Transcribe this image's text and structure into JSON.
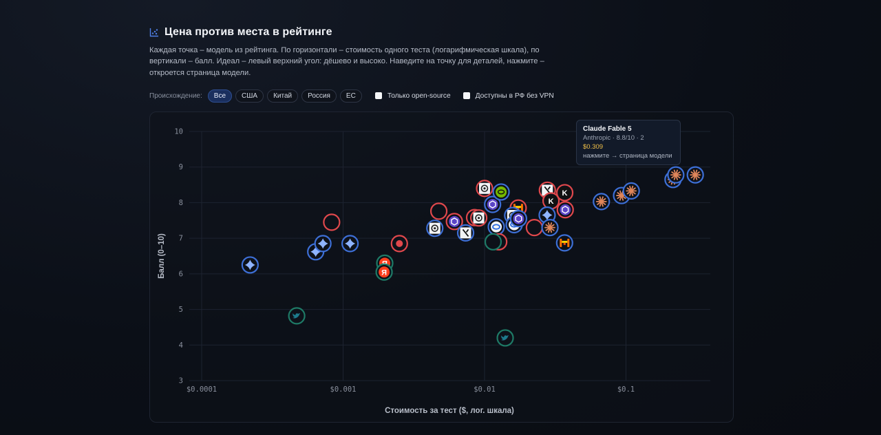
{
  "header": {
    "title": "Цена против места в рейтинге",
    "description": "Каждая точка – модель из рейтинга. По горизонтали – стоимость одного теста (логарифмическая шкала), по вертикали – балл. Идеал – левый верхний угол: дёшево и высоко. Наведите на точку для деталей, нажмите – откроется страница модели.",
    "icon": "scatter-chart-icon"
  },
  "filters": {
    "label": "Происхождение:",
    "chips": [
      "Все",
      "США",
      "Китай",
      "Россия",
      "ЕС"
    ],
    "active": "Все",
    "checkboxes": [
      {
        "label": "Только open-source",
        "checked": false
      },
      {
        "label": "Доступны в РФ без VPN",
        "checked": false
      }
    ]
  },
  "tooltip": {
    "name": "Claude Fable 5",
    "sub": "Anthropic · 8.8/10 · 2",
    "price": "$0.309",
    "hint": "нажмите → страница модели"
  },
  "colors": {
    "ring_red": "#e0484c",
    "ring_blue": "#3d6fd6",
    "ring_teal": "#1e7a66",
    "accent": "#2f4f92",
    "tooltip_price": "#f0c048"
  },
  "chart_data": {
    "type": "scatter",
    "title": "",
    "xlabel": "Стоимость за тест ($, лог. шкала)",
    "ylabel": "Балл (0–10)",
    "xscale": "log",
    "xlim": [
      0.0001,
      0.3
    ],
    "ylim": [
      3,
      10
    ],
    "xticks": [
      0.0001,
      0.001,
      0.01,
      0.1
    ],
    "xtick_labels": [
      "$0.0001",
      "$0.001",
      "$0.01",
      "$0.1"
    ],
    "yticks": [
      3,
      4,
      5,
      6,
      7,
      8,
      9,
      10
    ],
    "grid": true,
    "points": [
      {
        "x": 0.00022,
        "y": 6.25,
        "ring": "blue",
        "icon": "gemini-icon"
      },
      {
        "x": 0.00047,
        "y": 4.82,
        "ring": "teal",
        "icon": "twitter-icon"
      },
      {
        "x": 0.00064,
        "y": 6.62,
        "ring": "blue",
        "icon": "gemini-icon"
      },
      {
        "x": 0.00072,
        "y": 6.85,
        "ring": "blue",
        "icon": "gemini-icon"
      },
      {
        "x": 0.00083,
        "y": 7.45,
        "ring": "red",
        "icon": ""
      },
      {
        "x": 0.00112,
        "y": 6.85,
        "ring": "blue",
        "icon": "gemini-icon"
      },
      {
        "x": 0.00197,
        "y": 6.3,
        "ring": "teal",
        "icon": "yandex-icon"
      },
      {
        "x": 0.00195,
        "y": 6.05,
        "ring": "teal",
        "icon": "yandex-icon"
      },
      {
        "x": 0.0025,
        "y": 6.85,
        "ring": "red",
        "icon": "dot-icon"
      },
      {
        "x": 0.00445,
        "y": 7.28,
        "ring": "blue",
        "icon": "openai-icon"
      },
      {
        "x": 0.00475,
        "y": 7.76,
        "ring": "red",
        "icon": ""
      },
      {
        "x": 0.00612,
        "y": 7.47,
        "ring": "red",
        "icon": "perplexity-icon"
      },
      {
        "x": 0.00735,
        "y": 7.15,
        "ring": "blue",
        "icon": "xai-icon"
      },
      {
        "x": 0.0085,
        "y": 7.58,
        "ring": "red",
        "icon": ""
      },
      {
        "x": 0.0091,
        "y": 7.57,
        "ring": "red",
        "icon": "openai-icon"
      },
      {
        "x": 0.01,
        "y": 8.4,
        "ring": "red",
        "icon": "openai-icon"
      },
      {
        "x": 0.0114,
        "y": 7.95,
        "ring": "blue",
        "icon": "perplexity-icon"
      },
      {
        "x": 0.0131,
        "y": 8.3,
        "ring": "blue",
        "icon": "nvidia-icon"
      },
      {
        "x": 0.0121,
        "y": 7.32,
        "ring": "blue",
        "icon": "meta-icon"
      },
      {
        "x": 0.0126,
        "y": 6.9,
        "ring": "red",
        "icon": ""
      },
      {
        "x": 0.0115,
        "y": 6.9,
        "ring": "teal",
        "icon": ""
      },
      {
        "x": 0.014,
        "y": 4.2,
        "ring": "teal",
        "icon": "twitter-icon"
      },
      {
        "x": 0.0173,
        "y": 7.85,
        "ring": "red",
        "icon": "mistral-icon"
      },
      {
        "x": 0.0158,
        "y": 7.64,
        "ring": "blue",
        "icon": "openai-icon"
      },
      {
        "x": 0.0162,
        "y": 7.38,
        "ring": "blue",
        "icon": "meta-icon"
      },
      {
        "x": 0.0174,
        "y": 7.55,
        "ring": "blue",
        "icon": "perplexity-icon"
      },
      {
        "x": 0.0225,
        "y": 7.3,
        "ring": "red",
        "icon": ""
      },
      {
        "x": 0.0278,
        "y": 8.35,
        "ring": "red",
        "icon": "xai-icon"
      },
      {
        "x": 0.0295,
        "y": 8.05,
        "ring": "red",
        "icon": "kimi-icon"
      },
      {
        "x": 0.0277,
        "y": 7.65,
        "ring": "blue",
        "icon": "gemini-icon"
      },
      {
        "x": 0.029,
        "y": 7.3,
        "ring": "blue",
        "icon": "claude-icon"
      },
      {
        "x": 0.0369,
        "y": 8.28,
        "ring": "red",
        "icon": "kimi-icon"
      },
      {
        "x": 0.0372,
        "y": 7.8,
        "ring": "red",
        "icon": "perplexity-icon"
      },
      {
        "x": 0.0368,
        "y": 6.87,
        "ring": "blue",
        "icon": "mistral-icon"
      },
      {
        "x": 0.067,
        "y": 8.03,
        "ring": "blue",
        "icon": "claude-icon"
      },
      {
        "x": 0.093,
        "y": 8.2,
        "ring": "blue",
        "icon": "claude-icon"
      },
      {
        "x": 0.109,
        "y": 8.33,
        "ring": "blue",
        "icon": "claude-icon"
      },
      {
        "x": 0.215,
        "y": 8.65,
        "ring": "blue",
        "icon": "claude-icon"
      },
      {
        "x": 0.225,
        "y": 8.78,
        "ring": "blue",
        "icon": "claude-icon"
      },
      {
        "x": 0.309,
        "y": 8.78,
        "ring": "blue",
        "icon": "claude-icon"
      }
    ]
  }
}
